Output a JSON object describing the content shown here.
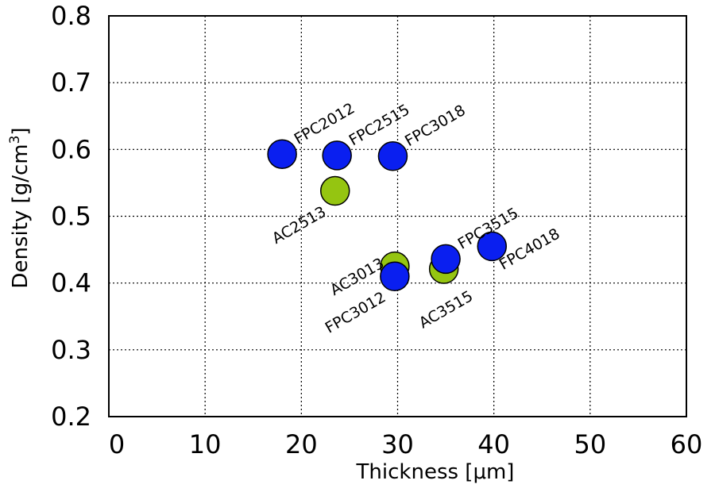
{
  "chart_data": {
    "type": "scatter",
    "xlabel": "Thickness [μm]",
    "ylabel_main": "Density [g/cm",
    "ylabel_sup": "3",
    "ylabel_close": "]",
    "xlim": [
      0,
      60
    ],
    "ylim": [
      0.2,
      0.8
    ],
    "xticks": [
      0,
      10,
      20,
      30,
      40,
      50,
      60
    ],
    "xtick_labels": [
      "0",
      "10",
      "20",
      "30",
      "40",
      "50",
      "60"
    ],
    "yticks": [
      0.2,
      0.3,
      0.4,
      0.5,
      0.6,
      0.7,
      0.8
    ],
    "ytick_labels": [
      "0.2",
      "0.3",
      "0.4",
      "0.5",
      "0.6",
      "0.7",
      "0.8"
    ],
    "grid": true,
    "colors": {
      "FPC": "#0a1ff0",
      "AC": "#95c511"
    },
    "points": [
      {
        "label": "AC2513",
        "series": "AC",
        "x": 23.5,
        "y": 0.538,
        "label_pos": "below-left"
      },
      {
        "label": "AC3013",
        "series": "AC",
        "x": 29.7,
        "y": 0.425,
        "label_pos": "above-left"
      },
      {
        "label": "AC3515",
        "series": "AC",
        "x": 34.8,
        "y": 0.421,
        "label_pos": "below"
      },
      {
        "label": "FPC2012",
        "series": "FPC",
        "x": 18.0,
        "y": 0.593,
        "label_pos": "above-right"
      },
      {
        "label": "FPC2515",
        "series": "FPC",
        "x": 23.7,
        "y": 0.591,
        "label_pos": "above-right"
      },
      {
        "label": "FPC3018",
        "series": "FPC",
        "x": 29.5,
        "y": 0.59,
        "label_pos": "above-right"
      },
      {
        "label": "FPC3515",
        "series": "FPC",
        "x": 35.0,
        "y": 0.436,
        "label_pos": "above-right"
      },
      {
        "label": "FPC4018",
        "series": "FPC",
        "x": 39.8,
        "y": 0.455,
        "label_pos": "below-right"
      },
      {
        "label": "FPC3012",
        "series": "FPC",
        "x": 29.7,
        "y": 0.41,
        "label_pos": "below-left"
      }
    ]
  }
}
